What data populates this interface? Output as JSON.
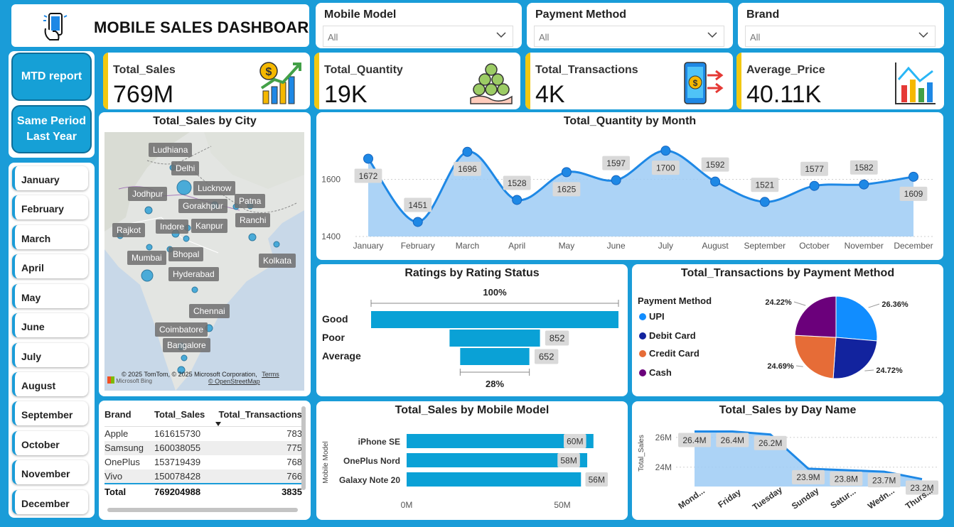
{
  "header": {
    "title": "MOBILE SALES DASHBOARD",
    "icon": "phone-hand-icon"
  },
  "slicers": [
    {
      "label": "Mobile Model",
      "value": "All"
    },
    {
      "label": "Payment Method",
      "value": "All"
    },
    {
      "label": "Brand",
      "value": "All"
    }
  ],
  "nav": {
    "mtd_label": "MTD report",
    "same_period_label": "Same Period Last Year"
  },
  "months": [
    "January",
    "February",
    "March",
    "April",
    "May",
    "June",
    "July",
    "August",
    "September",
    "October",
    "November",
    "December"
  ],
  "kpis": [
    {
      "label": "Total_Sales",
      "value": "769M",
      "icon": "money-growth-icon"
    },
    {
      "label": "Total_Quantity",
      "value": "19K",
      "icon": "coins-hand-icon"
    },
    {
      "label": "Total_Transactions",
      "value": "4K",
      "icon": "mobile-payment-icon"
    },
    {
      "label": "Average_Price",
      "value": "40.11K",
      "icon": "bar-chart-icon"
    }
  ],
  "map": {
    "title": "Total_Sales by City",
    "cities": [
      "Ludhiana",
      "Delhi",
      "Jodhpur",
      "Lucknow",
      "Patna",
      "Gorakhpur",
      "Rajkot",
      "Indore",
      "Kanpur",
      "Ranchi",
      "Mumbai",
      "Bhopal",
      "Kolkata",
      "Hyderabad",
      "Chennai",
      "Coimbatore",
      "Bangalore"
    ],
    "attribution": "© 2025 TomTom, © 2025 Microsoft Corporation,",
    "terms": "Terms",
    "osm": "© OpenStreetMap",
    "bing": "Microsoft Bing"
  },
  "brand_table": {
    "columns": [
      "Brand",
      "Total_Sales",
      "Total_Transactions"
    ],
    "rows": [
      [
        "Apple",
        "161615730",
        "783"
      ],
      [
        "Samsung",
        "160038055",
        "775"
      ],
      [
        "OnePlus",
        "153719439",
        "768"
      ],
      [
        "Vivo",
        "150078428",
        "766"
      ]
    ],
    "total": [
      "Total",
      "769204988",
      "3835"
    ]
  },
  "chart_data": [
    {
      "type": "area",
      "title": "Total_Quantity by Month",
      "categories": [
        "January",
        "February",
        "March",
        "April",
        "May",
        "June",
        "July",
        "August",
        "September",
        "October",
        "November",
        "December"
      ],
      "values": [
        1672,
        1451,
        1696,
        1528,
        1625,
        1597,
        1700,
        1592,
        1521,
        1577,
        1582,
        1609
      ],
      "yticks": [
        1400,
        1600
      ],
      "ylim": [
        1400,
        1760
      ],
      "color": "#1e88e5"
    },
    {
      "type": "bar",
      "title": "Ratings by Rating Status",
      "categories": [
        "Good",
        "Poor",
        "Average"
      ],
      "values": [
        2331,
        852,
        652
      ],
      "labels": [
        "",
        "852",
        "652"
      ],
      "top_label": "100%",
      "bottom_label": "28%",
      "color": "#0aa1d6"
    },
    {
      "type": "pie",
      "title": "Total_Transactions by Payment Method",
      "legend_title": "Payment Method",
      "categories": [
        "UPI",
        "Debit Card",
        "Credit Card",
        "Cash"
      ],
      "percent_labels": [
        "26.36%",
        "24.72%",
        "24.69%",
        "24.22%"
      ],
      "values": [
        26.36,
        24.72,
        24.69,
        24.22
      ],
      "colors": [
        "#118dff",
        "#12239e",
        "#e66c37",
        "#6b007b"
      ]
    },
    {
      "type": "bar",
      "title": "Total_Sales by Mobile Model",
      "ylabel": "Mobile Model",
      "categories": [
        "iPhone SE",
        "OnePlus Nord",
        "Galaxy Note 20"
      ],
      "values": [
        60,
        58,
        56
      ],
      "labels": [
        "60M",
        "58M",
        "56M"
      ],
      "xticks": [
        "0M",
        "50M"
      ],
      "color": "#0aa1d6"
    },
    {
      "type": "area",
      "title": "Total_Sales by Day Name",
      "ylabel": "Total_Sales",
      "categories": [
        "Mond...",
        "Friday",
        "Tuesday",
        "Sunday",
        "Satur...",
        "Wedn...",
        "Thurs..."
      ],
      "values": [
        26.4,
        26.4,
        26.2,
        23.9,
        23.8,
        23.7,
        23.2
      ],
      "labels": [
        "26.4M",
        "26.4M",
        "26.2M",
        "23.9M",
        "23.8M",
        "23.7M",
        "23.2M"
      ],
      "yticks": [
        "24M",
        "26M"
      ],
      "ylim": [
        22.7,
        27
      ],
      "color": "#1e88e5"
    }
  ]
}
